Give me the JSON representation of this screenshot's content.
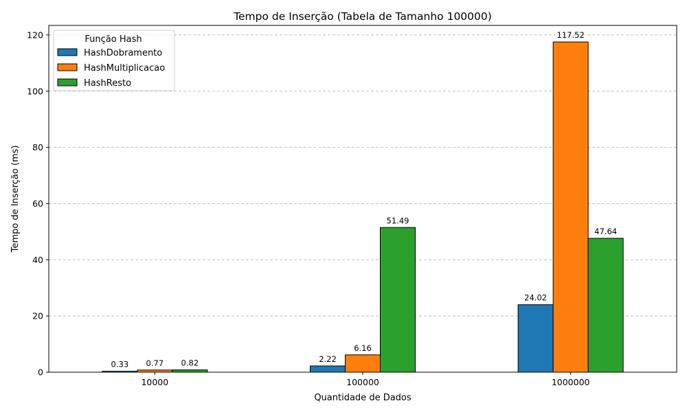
{
  "chart_data": {
    "type": "bar",
    "title": "Tempo de Inserção (Tabela de Tamanho 100000)",
    "xlabel": "Quantidade de Dados",
    "ylabel": "Tempo de Inserção (ms)",
    "categories": [
      "10000",
      "100000",
      "1000000"
    ],
    "series": [
      {
        "name": "HashDobramento",
        "color": "#1f77b4",
        "values": [
          0.33,
          2.22,
          24.02
        ]
      },
      {
        "name": "HashMultiplicacao",
        "color": "#ff7f0e",
        "values": [
          0.77,
          6.16,
          117.52
        ]
      },
      {
        "name": "HashResto",
        "color": "#2ca02c",
        "values": [
          0.82,
          51.49,
          47.64
        ]
      }
    ],
    "ylim": [
      0,
      123.4
    ],
    "yticks": [
      0,
      20,
      40,
      60,
      80,
      100,
      120
    ],
    "grid": "y-dashed",
    "legend": {
      "title": "Função Hash",
      "placement": "top-left"
    }
  }
}
